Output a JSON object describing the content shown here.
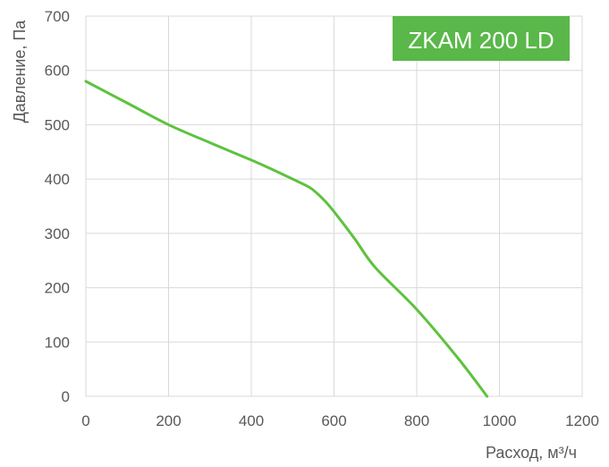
{
  "chart_data": {
    "type": "line",
    "title": "ZKAM 200 LD",
    "xlabel": "Расход, м³/ч",
    "ylabel": "Давление, Па",
    "xlim": [
      0,
      1200
    ],
    "ylim": [
      0,
      700
    ],
    "x_ticks": [
      0,
      200,
      400,
      600,
      800,
      1000,
      1200
    ],
    "y_ticks": [
      0,
      100,
      200,
      300,
      400,
      500,
      600,
      700
    ],
    "grid": true,
    "colors": {
      "series": "#5ec23f",
      "badge": "#59b849",
      "grid": "#d9d9d9",
      "text": "#595959"
    },
    "series": [
      {
        "x": [
          0,
          100,
          200,
          300,
          400,
          450,
          500,
          540,
          560,
          580,
          600,
          650,
          700,
          800,
          900,
          970
        ],
        "values": [
          580,
          540,
          500,
          467,
          435,
          418,
          400,
          385,
          373,
          358,
          340,
          290,
          237,
          160,
          70,
          0
        ]
      }
    ]
  }
}
